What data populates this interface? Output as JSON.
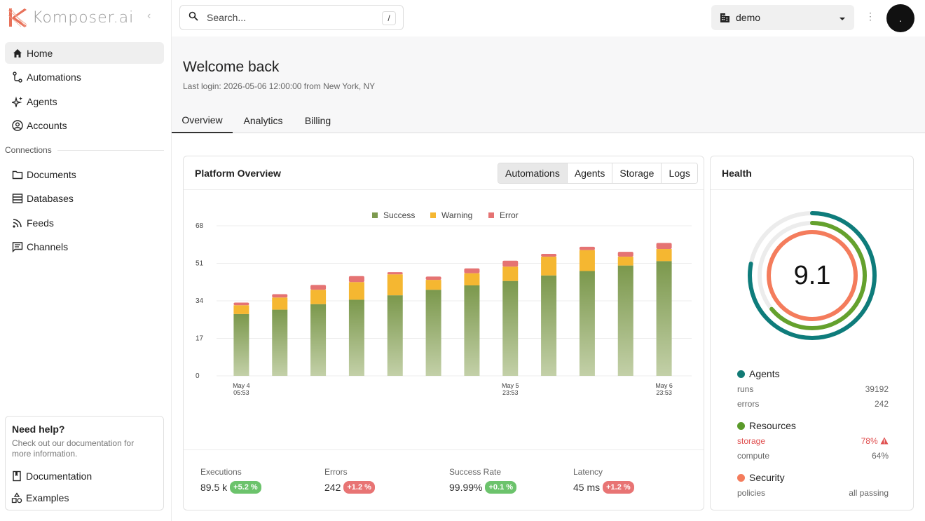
{
  "app": {
    "brand": "Komposer.ai"
  },
  "sidebar": {
    "items": [
      {
        "label": "Home",
        "icon": "home-icon"
      },
      {
        "label": "Automations",
        "icon": "flow-icon"
      },
      {
        "label": "Agents",
        "icon": "sparkle-icon"
      },
      {
        "label": "Accounts",
        "icon": "account-circle-icon"
      }
    ],
    "connections_label": "Connections",
    "connections": [
      {
        "label": "Documents",
        "icon": "folder-icon"
      },
      {
        "label": "Databases",
        "icon": "database-icon"
      },
      {
        "label": "Feeds",
        "icon": "rss-icon"
      },
      {
        "label": "Channels",
        "icon": "chat-icon"
      }
    ],
    "help": {
      "title": "Need help?",
      "text": "Check out our documentation for more information.",
      "links": [
        {
          "label": "Documentation",
          "icon": "book-icon"
        },
        {
          "label": "Examples",
          "icon": "shapes-icon"
        }
      ]
    }
  },
  "topbar": {
    "search_placeholder": "Search...",
    "search_shortcut": "/",
    "org": "demo",
    "avatar_initial": "."
  },
  "header": {
    "title": "Welcome back",
    "last_login": "Last login: 2026-05-06 12:00:00 from New York, NY"
  },
  "tabs": [
    "Overview",
    "Analytics",
    "Billing"
  ],
  "overview": {
    "title": "Platform Overview",
    "segments": [
      "Automations",
      "Agents",
      "Storage",
      "Logs"
    ],
    "stats": [
      {
        "label": "Executions",
        "value": "89.5 k",
        "delta": "+5.2 %",
        "trend": "up"
      },
      {
        "label": "Errors",
        "value": "242",
        "delta": "+1.2 %",
        "trend": "down"
      },
      {
        "label": "Success Rate",
        "value": "99.99%",
        "delta": "+0.1 %",
        "trend": "up"
      },
      {
        "label": "Latency",
        "value": "45 ms",
        "delta": "+1.2 %",
        "trend": "down"
      }
    ]
  },
  "chart_data": {
    "type": "bar",
    "stacked": true,
    "categories": [
      "May 4 05:53",
      "",
      "",
      "",
      "",
      "",
      "",
      "May 5 23:53",
      "",
      "",
      "",
      "May 6 23:53"
    ],
    "tick_labels": [
      {
        "index": 0,
        "line1": "May 4",
        "line2": "05:53"
      },
      {
        "index": 7,
        "line1": "May 5",
        "line2": "23:53"
      },
      {
        "index": 11,
        "line1": "May 6",
        "line2": "23:53"
      }
    ],
    "series": [
      {
        "name": "Success",
        "color": "#7d9a4f",
        "values": [
          28,
          30,
          32.5,
          34.5,
          36.5,
          39,
          41,
          43,
          45.5,
          47.5,
          50,
          52
        ]
      },
      {
        "name": "Warning",
        "color": "#f5b731",
        "values": [
          4,
          5.5,
          6.5,
          8,
          9.5,
          4.5,
          5.5,
          6.5,
          8.5,
          9.5,
          4,
          5.5
        ]
      },
      {
        "name": "Error",
        "color": "#e57373",
        "values": [
          1.2,
          1.5,
          2.2,
          2.7,
          1,
          1.5,
          2.2,
          2.7,
          1.3,
          1.5,
          2.2,
          2.7
        ]
      }
    ],
    "yticks": [
      0,
      17,
      34,
      51,
      68
    ],
    "ylim": [
      0,
      68
    ],
    "legend": "top-center",
    "grid": true
  },
  "health": {
    "title": "Health",
    "score": "9.1",
    "rings": [
      {
        "name": "Agents",
        "color": "#0e7c7b",
        "fraction": 0.78
      },
      {
        "name": "Resources",
        "color": "#64a12d",
        "fraction": 0.64
      },
      {
        "name": "Security",
        "color": "#f47c5c",
        "fraction": 1.0
      }
    ],
    "sections": [
      {
        "name": "Agents",
        "color": "#117a75",
        "rows": [
          {
            "k": "runs",
            "v": "39192"
          },
          {
            "k": "errors",
            "v": "242"
          }
        ]
      },
      {
        "name": "Resources",
        "color": "#5a9a2a",
        "rows": [
          {
            "k": "storage",
            "v": "78%",
            "alert": true
          },
          {
            "k": "compute",
            "v": "64%"
          }
        ]
      },
      {
        "name": "Security",
        "color": "#f47c5c",
        "rows": [
          {
            "k": "policies",
            "v": "all passing"
          }
        ]
      }
    ]
  }
}
